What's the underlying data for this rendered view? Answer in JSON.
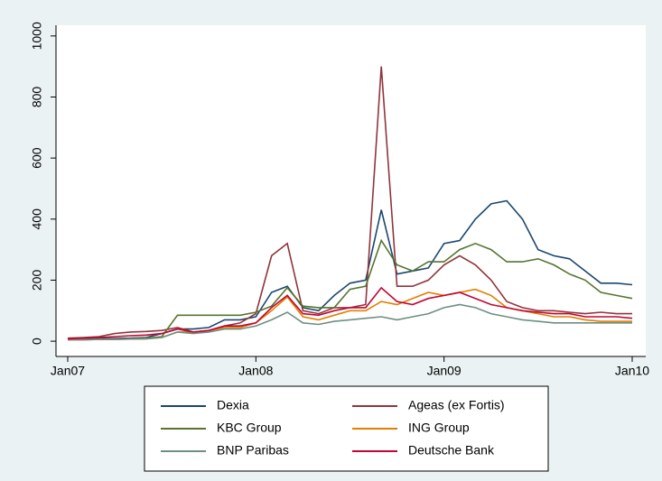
{
  "chart_data": {
    "type": "line",
    "categories": [
      "Jan07",
      null,
      null,
      null,
      null,
      null,
      null,
      null,
      null,
      null,
      null,
      null,
      "Jan08",
      null,
      null,
      null,
      null,
      null,
      null,
      null,
      null,
      null,
      null,
      null,
      "Jan09",
      null,
      null,
      null,
      null,
      null,
      null,
      null,
      null,
      null,
      null,
      null,
      "Jan10"
    ],
    "series": [
      {
        "name": "Dexia",
        "color": "#1a476f",
        "values": [
          8,
          8,
          9,
          9,
          10,
          12,
          25,
          40,
          40,
          45,
          70,
          70,
          80,
          160,
          180,
          110,
          100,
          150,
          190,
          200,
          430,
          220,
          230,
          240,
          320,
          330,
          400,
          450,
          460,
          400,
          300,
          280,
          270,
          230,
          190,
          190,
          185
        ]
      },
      {
        "name": "Ageas (ex Fortis)",
        "color": "#90353b",
        "values": [
          10,
          12,
          15,
          25,
          30,
          32,
          35,
          45,
          30,
          35,
          50,
          60,
          90,
          280,
          320,
          100,
          90,
          110,
          110,
          120,
          900,
          180,
          180,
          200,
          250,
          280,
          250,
          200,
          130,
          110,
          100,
          100,
          95,
          90,
          95,
          90,
          90
        ]
      },
      {
        "name": "KBC Group",
        "color": "#55752f",
        "values": [
          5,
          5,
          6,
          6,
          8,
          10,
          15,
          85,
          85,
          85,
          85,
          85,
          95,
          115,
          175,
          115,
          110,
          110,
          170,
          180,
          330,
          250,
          230,
          260,
          260,
          300,
          320,
          300,
          260,
          260,
          270,
          250,
          220,
          200,
          160,
          150,
          140
        ]
      },
      {
        "name": "ING Group",
        "color": "#e37e00",
        "values": [
          5,
          5,
          6,
          6,
          7,
          8,
          12,
          30,
          30,
          35,
          45,
          45,
          60,
          100,
          145,
          80,
          70,
          85,
          100,
          100,
          130,
          120,
          140,
          160,
          150,
          160,
          170,
          150,
          110,
          100,
          90,
          80,
          80,
          70,
          65,
          65,
          65
        ]
      },
      {
        "name": "BNP Paribas",
        "color": "#6e8e84",
        "values": [
          5,
          5,
          6,
          6,
          7,
          8,
          12,
          30,
          25,
          30,
          40,
          40,
          50,
          70,
          95,
          60,
          55,
          65,
          70,
          75,
          80,
          70,
          80,
          90,
          110,
          120,
          110,
          90,
          80,
          70,
          65,
          60,
          60,
          60,
          60,
          60,
          60
        ]
      },
      {
        "name": "Deutsche Bank",
        "color": "#c10534",
        "values": [
          8,
          10,
          12,
          15,
          18,
          20,
          25,
          40,
          30,
          35,
          50,
          50,
          60,
          110,
          150,
          90,
          85,
          100,
          110,
          110,
          175,
          130,
          120,
          140,
          150,
          160,
          140,
          120,
          110,
          100,
          95,
          90,
          90,
          80,
          80,
          80,
          75
        ]
      }
    ],
    "ylim": [
      -50,
      1035
    ],
    "yticks": [
      0,
      200,
      400,
      600,
      800,
      1000
    ],
    "grid": false
  }
}
